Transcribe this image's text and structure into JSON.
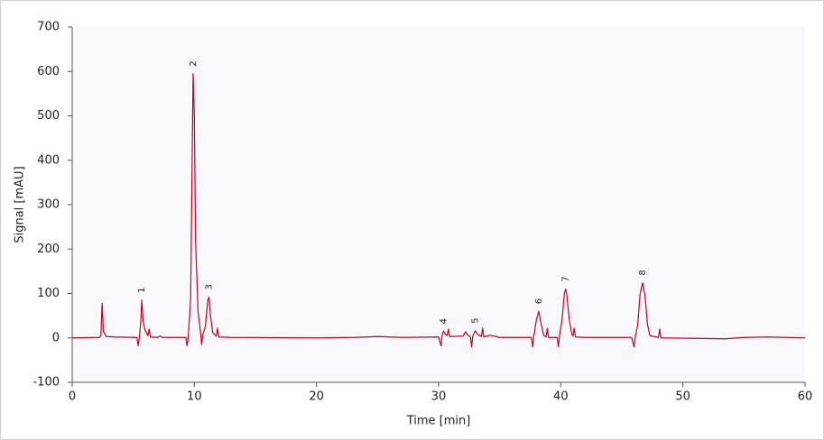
{
  "chart_data": {
    "type": "line",
    "x_label": "Time [min]",
    "y_label": "Signal [mAU]",
    "xlim": [
      0,
      60
    ],
    "xticks": [
      0,
      10,
      20,
      30,
      40,
      50,
      60
    ],
    "ylim": [
      -100,
      700
    ],
    "yticks": [
      -100,
      0,
      100,
      200,
      300,
      400,
      500,
      600,
      700
    ],
    "x": [
      0,
      2.2,
      2.35,
      2.45,
      2.55,
      2.8,
      3.5,
      5.3,
      5.4,
      5.5,
      5.6,
      5.7,
      5.8,
      5.95,
      6.2,
      6.3,
      6.4,
      7.0,
      7.2,
      7.4,
      9.3,
      9.4,
      9.5,
      9.7,
      9.8,
      9.9,
      10.0,
      10.1,
      10.3,
      10.5,
      10.6,
      10.7,
      10.9,
      11.1,
      11.2,
      11.3,
      11.5,
      11.8,
      11.9,
      12.0,
      13.0,
      20.0,
      23.0,
      25.0,
      27.0,
      30.0,
      30.2,
      30.3,
      30.4,
      30.5,
      30.7,
      30.8,
      30.9,
      32.0,
      32.2,
      32.4,
      32.6,
      32.7,
      32.8,
      33.0,
      33.2,
      33.5,
      33.6,
      33.7,
      34.2,
      35.0,
      37.6,
      37.7,
      37.8,
      38.0,
      38.2,
      38.4,
      38.6,
      38.8,
      38.9,
      39.0,
      39.7,
      39.8,
      39.9,
      40.1,
      40.3,
      40.4,
      40.5,
      40.7,
      40.9,
      41.0,
      41.1,
      41.2,
      42.0,
      45.8,
      46.0,
      46.1,
      46.3,
      46.5,
      46.7,
      46.9,
      47.1,
      47.3,
      48.0,
      48.1,
      48.2,
      53.5,
      55.0,
      57.0,
      60.0
    ],
    "series": [
      {
        "color": "#c4001c",
        "values": [
          0,
          1,
          5,
          78,
          15,
          3,
          2,
          1,
          -18,
          2,
          30,
          85,
          40,
          18,
          5,
          20,
          2,
          1,
          4,
          1,
          1,
          -18,
          2,
          90,
          350,
          595,
          500,
          220,
          60,
          15,
          -15,
          8,
          25,
          85,
          92,
          55,
          12,
          4,
          22,
          2,
          1,
          0,
          1,
          3,
          1,
          2,
          -18,
          8,
          15,
          10,
          5,
          20,
          3,
          4,
          14,
          6,
          3,
          -20,
          5,
          16,
          8,
          3,
          22,
          2,
          6,
          1,
          1,
          -20,
          5,
          40,
          60,
          30,
          6,
          2,
          22,
          1,
          1,
          -20,
          5,
          40,
          100,
          110,
          95,
          40,
          10,
          4,
          22,
          2,
          1,
          1,
          -20,
          2,
          30,
          100,
          124,
          95,
          30,
          5,
          1,
          20,
          0,
          -2,
          1,
          2,
          0
        ]
      }
    ],
    "annotations": [
      {
        "text": "1",
        "x": 5.7,
        "y": 85
      },
      {
        "text": "2",
        "x": 9.9,
        "y": 595
      },
      {
        "text": "3",
        "x": 11.2,
        "y": 92
      },
      {
        "text": "4",
        "x": 30.4,
        "y": 15
      },
      {
        "text": "5",
        "x": 33.0,
        "y": 16
      },
      {
        "text": "6",
        "x": 38.2,
        "y": 60
      },
      {
        "text": "7",
        "x": 40.4,
        "y": 110
      },
      {
        "text": "8",
        "x": 46.7,
        "y": 124
      }
    ]
  }
}
